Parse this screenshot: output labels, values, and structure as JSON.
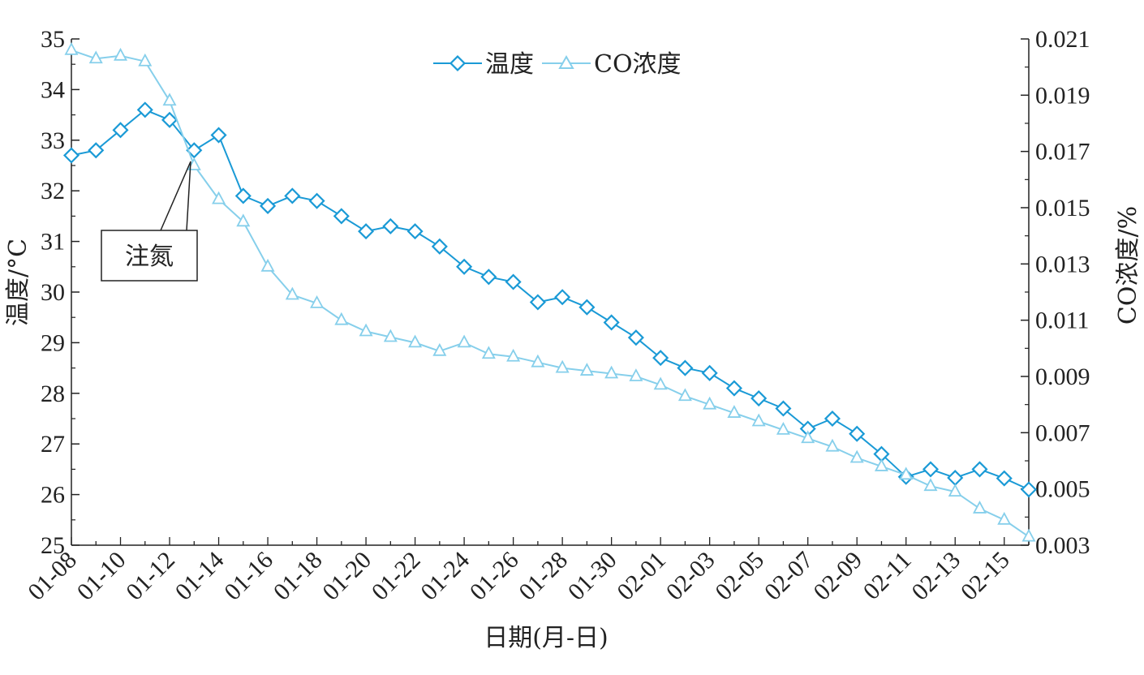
{
  "chart_data": {
    "type": "line",
    "title": "",
    "xlabel": "日期(月-日)",
    "ylabel_left": "温度/°C",
    "ylabel_right": "CO浓度/%",
    "ylim_left": [
      25,
      35
    ],
    "ylim_right": [
      0.003,
      0.021
    ],
    "y_ticks_left": [
      "25",
      "26",
      "27",
      "28",
      "29",
      "30",
      "31",
      "32",
      "33",
      "34",
      "35"
    ],
    "y_ticks_right": [
      "0.003",
      "0.005",
      "0.007",
      "0.009",
      "0.011",
      "0.013",
      "0.015",
      "0.017",
      "0.019",
      "0.021"
    ],
    "x": [
      "01-08",
      "01-09",
      "01-10",
      "01-11",
      "01-12",
      "01-13",
      "01-14",
      "01-15",
      "01-16",
      "01-17",
      "01-18",
      "01-19",
      "01-20",
      "01-21",
      "01-22",
      "01-23",
      "01-24",
      "01-25",
      "01-26",
      "01-27",
      "01-28",
      "01-29",
      "01-30",
      "01-31",
      "02-01",
      "02-02",
      "02-03",
      "02-04",
      "02-05",
      "02-06",
      "02-07",
      "02-08",
      "02-09",
      "02-10",
      "02-11",
      "02-12",
      "02-13",
      "02-14",
      "02-15",
      "02-16"
    ],
    "x_tick_labels": [
      "01-08",
      "01-10",
      "01-12",
      "01-14",
      "01-16",
      "01-18",
      "01-20",
      "01-22",
      "01-24",
      "01-26",
      "01-28",
      "01-30",
      "02-01",
      "02-03",
      "02-05",
      "02-07",
      "02-09",
      "02-11",
      "02-13",
      "02-15"
    ],
    "grid": false,
    "legend_position": "top-center",
    "series": [
      {
        "name": "温度",
        "axis": "left",
        "color": "#1a9ad6",
        "marker": "diamond",
        "values": [
          32.7,
          32.8,
          33.2,
          33.6,
          33.4,
          32.8,
          33.1,
          31.9,
          31.7,
          31.9,
          31.8,
          31.5,
          31.2,
          31.3,
          31.2,
          30.9,
          30.5,
          30.3,
          30.2,
          29.8,
          29.9,
          29.7,
          29.4,
          29.1,
          28.7,
          28.5,
          28.4,
          28.1,
          27.9,
          27.7,
          27.3,
          27.5,
          27.2,
          26.8,
          26.35,
          26.5,
          26.33,
          26.5,
          26.32,
          26.1
        ]
      },
      {
        "name": "CO浓度",
        "axis": "right",
        "color": "#86cfeb",
        "marker": "triangle",
        "values": [
          0.0206,
          0.0203,
          0.0204,
          0.0202,
          0.0188,
          0.0165,
          0.0153,
          0.0145,
          0.0129,
          0.0119,
          0.0116,
          0.011,
          0.0106,
          0.0104,
          0.0102,
          0.0099,
          0.0102,
          0.0098,
          0.0097,
          0.0095,
          0.0093,
          0.0092,
          0.0091,
          0.009,
          0.0087,
          0.0083,
          0.008,
          0.0077,
          0.0074,
          0.0071,
          0.0068,
          0.0065,
          0.0061,
          0.0058,
          0.0055,
          0.0051,
          0.0049,
          0.0043,
          0.0039,
          0.0033
        ]
      }
    ],
    "annotations": [
      {
        "text": "注氮",
        "x": "01-13"
      }
    ]
  }
}
